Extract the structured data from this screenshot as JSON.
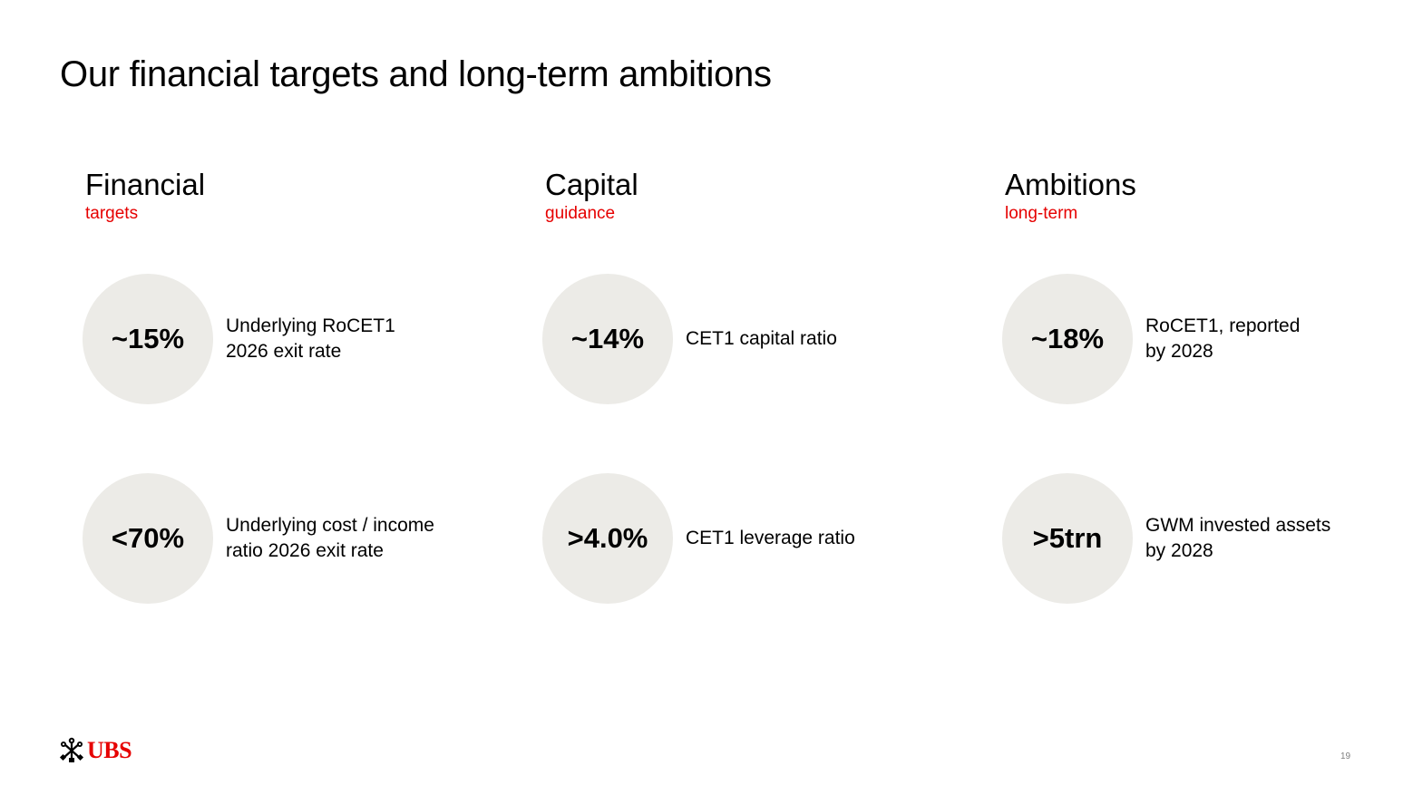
{
  "slide": {
    "title": "Our financial targets and long-term ambitions",
    "page_number": "19"
  },
  "brand": {
    "logo_text": "UBS",
    "accent_color": "#e60000",
    "circle_color": "#ecebe7"
  },
  "columns": [
    {
      "heading": "Financial",
      "subheading": "targets",
      "metrics": [
        {
          "value": "~15%",
          "label": "Underlying RoCET1\n2026 exit rate"
        },
        {
          "value": "<70%",
          "label": "Underlying cost / income\nratio 2026 exit rate"
        }
      ]
    },
    {
      "heading": "Capital",
      "subheading": "guidance",
      "metrics": [
        {
          "value": "~14%",
          "label": "CET1 capital ratio"
        },
        {
          "value": ">4.0%",
          "label": "CET1 leverage ratio"
        }
      ]
    },
    {
      "heading": "Ambitions",
      "subheading": "long-term",
      "metrics": [
        {
          "value": "~18%",
          "label": "RoCET1, reported\nby 2028"
        },
        {
          "value": ">5trn",
          "label": "GWM invested assets\nby 2028"
        }
      ]
    }
  ]
}
